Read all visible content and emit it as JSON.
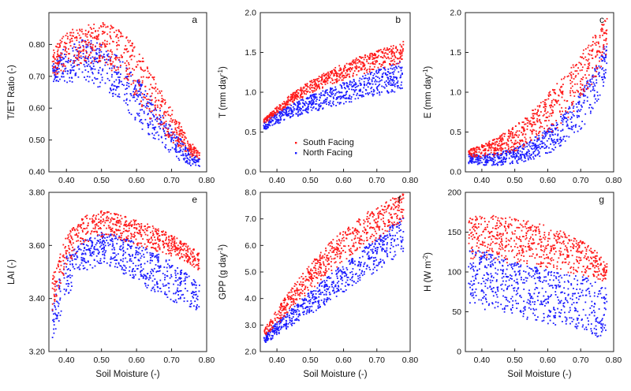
{
  "colors": {
    "south": "#ff1a1a",
    "north": "#1a1aff",
    "axis": "#222222"
  },
  "legend": [
    {
      "label": "South Facing",
      "color": "#ff1a1a"
    },
    {
      "label": "North Facing",
      "color": "#1a1aff"
    }
  ],
  "chart_data": [
    {
      "type": "scatter",
      "panel": "a",
      "xlabel": "",
      "ylabel": "T/ET Ratio (-)",
      "xlim": [
        0.35,
        0.8
      ],
      "ylim": [
        0.4,
        0.9
      ],
      "xticks": [
        "0.40",
        "0.50",
        "0.60",
        "0.70",
        "0.80"
      ],
      "yticks": [
        "0.40",
        "0.50",
        "0.60",
        "0.70",
        "0.80"
      ],
      "series": [
        {
          "name": "South Facing",
          "color": "#ff1a1a",
          "x": [
            0.36,
            0.4,
            0.45,
            0.5,
            0.55,
            0.6,
            0.65,
            0.7,
            0.75,
            0.78
          ],
          "lower": [
            0.7,
            0.72,
            0.74,
            0.74,
            0.7,
            0.62,
            0.55,
            0.49,
            0.45,
            0.44
          ],
          "upper": [
            0.78,
            0.84,
            0.86,
            0.87,
            0.85,
            0.79,
            0.7,
            0.6,
            0.5,
            0.46
          ]
        },
        {
          "name": "North Facing",
          "color": "#1a1aff",
          "x": [
            0.36,
            0.4,
            0.45,
            0.5,
            0.55,
            0.6,
            0.65,
            0.7,
            0.75,
            0.78
          ],
          "lower": [
            0.68,
            0.68,
            0.68,
            0.66,
            0.62,
            0.55,
            0.5,
            0.45,
            0.42,
            0.41
          ],
          "upper": [
            0.74,
            0.8,
            0.82,
            0.8,
            0.76,
            0.7,
            0.62,
            0.54,
            0.47,
            0.44
          ]
        }
      ]
    },
    {
      "type": "scatter",
      "panel": "b",
      "xlabel": "",
      "ylabel": "T (mm day-1)",
      "xlim": [
        0.35,
        0.8
      ],
      "ylim": [
        0.0,
        2.0
      ],
      "xticks": [
        "0.40",
        "0.50",
        "0.60",
        "0.70",
        "0.80"
      ],
      "yticks": [
        "0.0",
        "0.5",
        "1.0",
        "1.5",
        "2.0"
      ],
      "series": [
        {
          "name": "South Facing",
          "color": "#ff1a1a",
          "x": [
            0.36,
            0.4,
            0.45,
            0.5,
            0.55,
            0.6,
            0.65,
            0.7,
            0.75,
            0.78
          ],
          "lower": [
            0.6,
            0.72,
            0.87,
            0.98,
            1.07,
            1.15,
            1.22,
            1.28,
            1.33,
            1.36
          ],
          "upper": [
            0.66,
            0.82,
            1.0,
            1.14,
            1.26,
            1.36,
            1.45,
            1.52,
            1.59,
            1.64
          ]
        },
        {
          "name": "North Facing",
          "color": "#1a1aff",
          "x": [
            0.36,
            0.4,
            0.45,
            0.5,
            0.55,
            0.6,
            0.65,
            0.7,
            0.75,
            0.78
          ],
          "lower": [
            0.5,
            0.6,
            0.68,
            0.74,
            0.8,
            0.85,
            0.9,
            0.95,
            0.99,
            1.02
          ],
          "upper": [
            0.62,
            0.74,
            0.86,
            0.96,
            1.04,
            1.12,
            1.2,
            1.28,
            1.35,
            1.4
          ]
        }
      ]
    },
    {
      "type": "scatter",
      "panel": "c",
      "xlabel": "",
      "ylabel": "E (mm day-1)",
      "xlim": [
        0.35,
        0.8
      ],
      "ylim": [
        0.0,
        2.0
      ],
      "xticks": [
        "0.40",
        "0.50",
        "0.60",
        "0.70",
        "0.80"
      ],
      "yticks": [
        "0.0",
        "0.5",
        "1.0",
        "1.5",
        "2.0"
      ],
      "series": [
        {
          "name": "South Facing",
          "color": "#ff1a1a",
          "x": [
            0.36,
            0.4,
            0.45,
            0.5,
            0.55,
            0.6,
            0.65,
            0.7,
            0.75,
            0.78
          ],
          "lower": [
            0.18,
            0.18,
            0.2,
            0.26,
            0.34,
            0.46,
            0.62,
            0.86,
            1.2,
            1.5
          ],
          "upper": [
            0.28,
            0.34,
            0.44,
            0.58,
            0.76,
            0.98,
            1.22,
            1.48,
            1.78,
            1.98
          ]
        },
        {
          "name": "North Facing",
          "color": "#1a1aff",
          "x": [
            0.36,
            0.4,
            0.45,
            0.5,
            0.55,
            0.6,
            0.65,
            0.7,
            0.75,
            0.78
          ],
          "lower": [
            0.1,
            0.08,
            0.08,
            0.1,
            0.14,
            0.22,
            0.34,
            0.52,
            0.84,
            1.2
          ],
          "upper": [
            0.22,
            0.22,
            0.24,
            0.3,
            0.4,
            0.55,
            0.74,
            1.0,
            1.36,
            1.66
          ]
        }
      ]
    },
    {
      "type": "scatter",
      "panel": "e",
      "xlabel": "Soil Moisture (-)",
      "ylabel": "LAI (-)",
      "xlim": [
        0.35,
        0.8
      ],
      "ylim": [
        3.2,
        3.8
      ],
      "xticks": [
        "0.40",
        "0.50",
        "0.60",
        "0.70",
        "0.80"
      ],
      "yticks": [
        "3.20",
        "3.40",
        "3.60",
        "3.80"
      ],
      "series": [
        {
          "name": "South Facing",
          "color": "#ff1a1a",
          "x": [
            0.36,
            0.4,
            0.45,
            0.5,
            0.55,
            0.6,
            0.65,
            0.7,
            0.75,
            0.78
          ],
          "lower": [
            3.35,
            3.52,
            3.61,
            3.63,
            3.62,
            3.6,
            3.58,
            3.56,
            3.53,
            3.5
          ],
          "upper": [
            3.48,
            3.64,
            3.71,
            3.73,
            3.72,
            3.7,
            3.67,
            3.64,
            3.6,
            3.57
          ]
        },
        {
          "name": "North Facing",
          "color": "#1a1aff",
          "x": [
            0.36,
            0.4,
            0.45,
            0.5,
            0.55,
            0.6,
            0.65,
            0.7,
            0.75,
            0.78
          ],
          "lower": [
            3.23,
            3.4,
            3.5,
            3.53,
            3.5,
            3.46,
            3.42,
            3.39,
            3.37,
            3.35
          ],
          "upper": [
            3.4,
            3.56,
            3.62,
            3.65,
            3.64,
            3.61,
            3.58,
            3.54,
            3.49,
            3.45
          ]
        }
      ]
    },
    {
      "type": "scatter",
      "panel": "f",
      "xlabel": "Soil Moisture (-)",
      "ylabel": "GPP (g day-1)",
      "xlim": [
        0.35,
        0.8
      ],
      "ylim": [
        2.0,
        8.0
      ],
      "xticks": [
        "0.40",
        "0.50",
        "0.60",
        "0.70",
        "0.80"
      ],
      "yticks": [
        "2.0",
        "3.0",
        "4.0",
        "5.0",
        "6.0",
        "7.0",
        "8.0"
      ],
      "series": [
        {
          "name": "South Facing",
          "color": "#ff1a1a",
          "x": [
            0.36,
            0.4,
            0.45,
            0.5,
            0.55,
            0.6,
            0.65,
            0.7,
            0.75,
            0.78
          ],
          "lower": [
            2.5,
            3.0,
            3.7,
            4.3,
            4.85,
            5.35,
            5.8,
            6.2,
            6.6,
            6.9
          ],
          "upper": [
            2.85,
            3.6,
            4.5,
            5.3,
            6.0,
            6.6,
            7.1,
            7.45,
            7.8,
            7.95
          ]
        },
        {
          "name": "North Facing",
          "color": "#1a1aff",
          "x": [
            0.36,
            0.4,
            0.45,
            0.5,
            0.55,
            0.6,
            0.65,
            0.7,
            0.75,
            0.78
          ],
          "lower": [
            2.25,
            2.6,
            3.0,
            3.4,
            3.8,
            4.2,
            4.6,
            5.0,
            5.4,
            5.65
          ],
          "upper": [
            2.6,
            3.1,
            3.7,
            4.25,
            4.8,
            5.3,
            5.8,
            6.3,
            6.8,
            7.1
          ]
        }
      ]
    },
    {
      "type": "scatter",
      "panel": "g",
      "xlabel": "Soil Moisture (-)",
      "ylabel": "H (W m-2)",
      "xlim": [
        0.35,
        0.8
      ],
      "ylim": [
        0,
        200
      ],
      "xticks": [
        "0.40",
        "0.50",
        "0.60",
        "0.70",
        "0.80"
      ],
      "yticks": [
        "0",
        "50",
        "100",
        "150",
        "200"
      ],
      "series": [
        {
          "name": "South Facing",
          "color": "#ff1a1a",
          "x": [
            0.36,
            0.4,
            0.45,
            0.5,
            0.55,
            0.6,
            0.65,
            0.7,
            0.75,
            0.78
          ],
          "lower": [
            115,
            115,
            112,
            110,
            108,
            104,
            100,
            96,
            90,
            85
          ],
          "upper": [
            170,
            172,
            170,
            168,
            164,
            158,
            150,
            140,
            125,
            110
          ]
        },
        {
          "name": "North Facing",
          "color": "#1a1aff",
          "x": [
            0.36,
            0.4,
            0.45,
            0.5,
            0.55,
            0.6,
            0.65,
            0.7,
            0.75,
            0.78
          ],
          "lower": [
            60,
            52,
            46,
            42,
            38,
            34,
            30,
            24,
            18,
            12
          ],
          "upper": [
            130,
            128,
            120,
            112,
            108,
            104,
            100,
            95,
            88,
            80
          ]
        }
      ]
    }
  ]
}
